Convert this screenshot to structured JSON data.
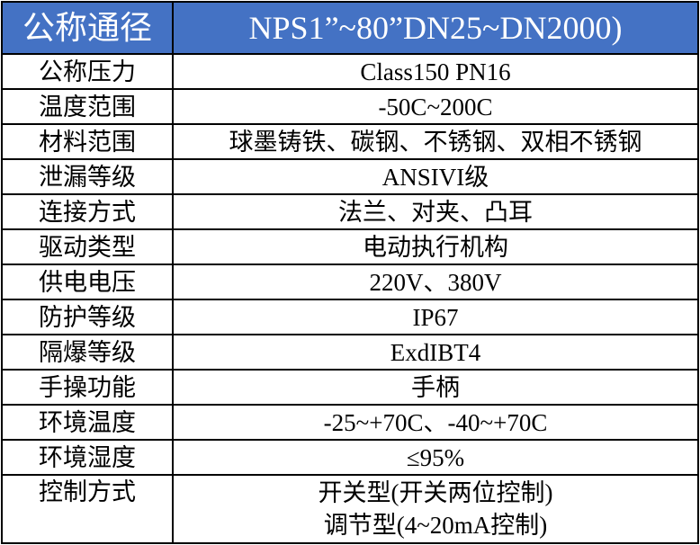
{
  "header": {
    "key": "公称通径",
    "value": "NPS1”~80”DN25~DN2000)"
  },
  "rows": [
    {
      "key": "公称压力",
      "value": "Class150 PN16"
    },
    {
      "key": "温度范围",
      "value": "-50C~200C"
    },
    {
      "key": "材料范围",
      "value": "球墨铸铁、碳钢、不锈钢、双相不锈钢"
    },
    {
      "key": "泄漏等级",
      "value": "ANSIVI级"
    },
    {
      "key": "连接方式",
      "value": "法兰、对夹、凸耳"
    },
    {
      "key": "驱动类型",
      "value": "电动执行机构"
    },
    {
      "key": "供电电压",
      "value": "220V、380V"
    },
    {
      "key": "防护等级",
      "value": "IP67"
    },
    {
      "key": "隔爆等级",
      "value": "ExdIBT4"
    },
    {
      "key": "手操功能",
      "value": "手柄"
    },
    {
      "key": "环境温度",
      "value": "-25~+70C、-40~+70C"
    },
    {
      "key": "环境湿度",
      "value": "≤95%"
    }
  ],
  "last": {
    "key": "控制方式",
    "line1": "开关型(开关两位控制)",
    "line2": "调节型(4~20mA控制)"
  },
  "colors": {
    "header_bg": "#4472c4",
    "header_text": "#ffffff"
  }
}
